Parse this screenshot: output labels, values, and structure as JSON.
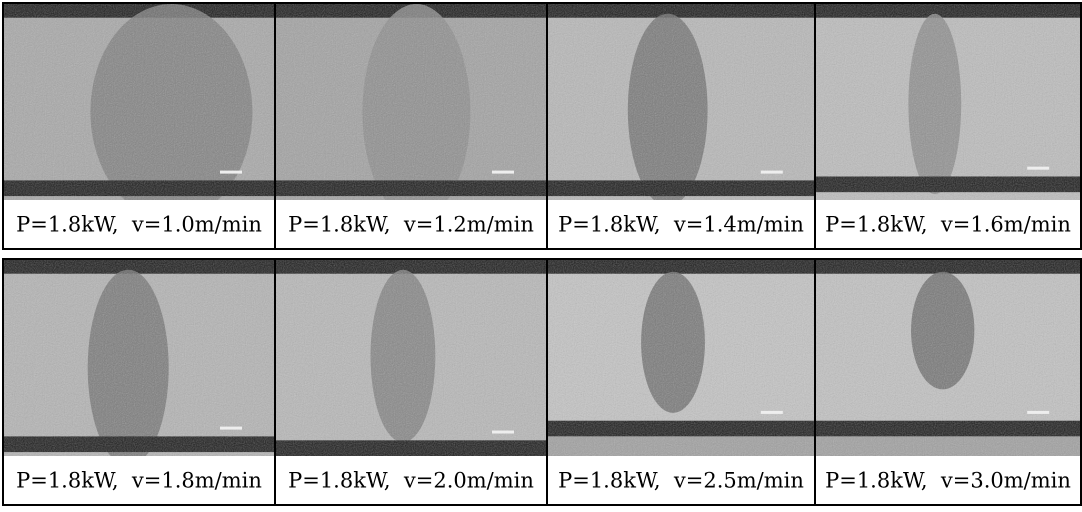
{
  "panels": [
    {
      "caption": "P=1.8kW,  v=1.0m/min"
    },
    {
      "caption": "P=1.8kW,  v=1.2m/min"
    },
    {
      "caption": "P=1.8kW,  v=1.4m/min"
    },
    {
      "caption": "P=1.8kW,  v=1.6m/min"
    },
    {
      "caption": "P=1.8kW,  v=1.8m/min"
    },
    {
      "caption": "P=1.8kW,  v=2.0m/min"
    },
    {
      "caption": "P=1.8kW,  v=2.5m/min"
    },
    {
      "caption": "P=1.8kW,  v=3.0m/min"
    }
  ]
}
